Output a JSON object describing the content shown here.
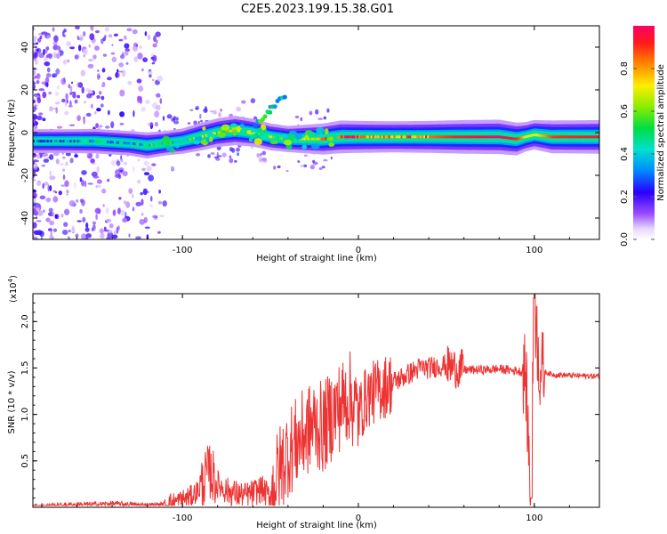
{
  "title": "C2E5.2023.199.15.38.G01",
  "chart_data": [
    {
      "type": "heatmap",
      "xlabel": "Height of straight line (km)",
      "ylabel": "Frequency (Hz)",
      "xlim": [
        -185,
        137
      ],
      "ylim": [
        -50,
        50
      ],
      "xticks": [
        -100,
        0,
        100
      ],
      "xtick_labels": [
        "-100",
        "0",
        "100"
      ],
      "yticks": [
        -40,
        -20,
        0,
        20,
        40
      ],
      "ytick_labels": [
        "-40",
        "-20",
        "0",
        "20",
        "40"
      ],
      "colorbar": {
        "label": "Normalized spectral amplitude",
        "range": [
          0,
          1
        ],
        "ticks": [
          0.0,
          0.2,
          0.4,
          0.6,
          0.8
        ],
        "tick_labels": [
          "0.0",
          "0.2",
          "0.4",
          "0.6",
          "0.8"
        ]
      },
      "ridge": {
        "x": [
          -170,
          -150,
          -130,
          -120,
          -110,
          -100,
          -90,
          -80,
          -70,
          -60,
          -50,
          -40,
          -30,
          -20,
          -10,
          0,
          20,
          40,
          60,
          80,
          90,
          95,
          100,
          110,
          137
        ],
        "freq_hz": [
          -4,
          -4,
          -5,
          -6,
          -5,
          -4,
          -2,
          0,
          1,
          0,
          -2,
          -3,
          -3,
          -3,
          -2,
          -2,
          -2,
          -2,
          -2,
          -2,
          -3,
          -2,
          -1,
          -2,
          -2
        ],
        "amplitude": [
          0.25,
          0.3,
          0.3,
          0.4,
          0.3,
          0.35,
          0.5,
          0.55,
          0.6,
          0.5,
          0.45,
          0.4,
          0.55,
          0.7,
          0.8,
          0.75,
          0.7,
          0.75,
          0.85,
          0.9,
          0.8,
          0.6,
          0.6,
          0.8,
          0.85
        ]
      }
    },
    {
      "type": "line",
      "xlabel": "Height of straight line (km)",
      "ylabel": "SNR (10 * v/v)",
      "y_multiplier_label": "(x10",
      "y_multiplier_exp": "4",
      "y_multiplier_close": ")",
      "xlim": [
        -185,
        137
      ],
      "ylim": [
        0,
        23000
      ],
      "xticks": [
        -100,
        0,
        100
      ],
      "xtick_labels": [
        "-100",
        "0",
        "100"
      ],
      "yticks": [
        5000,
        10000,
        15000,
        20000
      ],
      "ytick_labels": [
        "0.5",
        "1.0",
        "1.5",
        "2.0"
      ],
      "color": "#ee3333",
      "series": [
        {
          "x": [
            -185,
            -170,
            -160,
            -150,
            -140,
            -130,
            -120,
            -110,
            -105,
            -100,
            -95,
            -90,
            -85,
            -80,
            -75,
            -70,
            -65,
            -60,
            -55,
            -50,
            -45,
            -40,
            -35,
            -30,
            -25,
            -20,
            -15,
            -10,
            -5,
            0,
            5,
            10,
            15,
            20,
            25,
            30,
            35,
            40,
            45,
            50,
            55,
            60,
            70,
            80,
            90,
            95,
            98,
            100,
            103,
            110,
            120,
            137
          ],
          "values": [
            100,
            200,
            300,
            300,
            400,
            300,
            200,
            300,
            500,
            800,
            1200,
            2000,
            4000,
            2500,
            1800,
            1500,
            1200,
            1500,
            2000,
            1000,
            4000,
            6000,
            7000,
            8000,
            9000,
            8500,
            10000,
            11000,
            12000,
            10000,
            12000,
            12500,
            13000,
            13500,
            14000,
            14500,
            15000,
            15000,
            15200,
            15300,
            15000,
            14800,
            14800,
            14900,
            14700,
            14500,
            1000,
            22000,
            14800,
            14300,
            14200,
            14100
          ]
        }
      ]
    }
  ]
}
